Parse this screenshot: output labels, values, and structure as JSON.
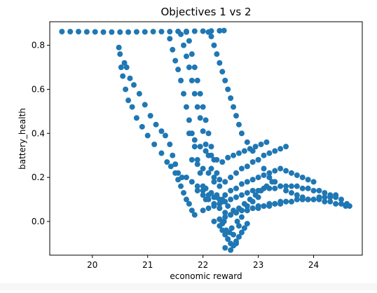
{
  "chart_data": {
    "type": "scatter",
    "title": "Objectives 1 vs 2",
    "xlabel": "economic reward",
    "ylabel": "battery_health",
    "xlim": [
      19.23,
      24.88
    ],
    "ylim": [
      -0.153,
      0.907
    ],
    "xticks": [
      20,
      21,
      22,
      23,
      24
    ],
    "yticks": [
      0.0,
      0.2,
      0.4,
      0.6,
      0.8
    ],
    "xtick_labels": [
      "20",
      "21",
      "22",
      "23",
      "24"
    ],
    "ytick_labels": [
      "0.0",
      "0.2",
      "0.4",
      "0.6",
      "0.8"
    ],
    "grid": false,
    "marker_color": "#1f77b4",
    "series": [
      {
        "x": [
          19.45,
          19.6,
          19.75,
          19.9,
          20.05,
          20.2,
          20.35,
          20.5,
          20.65,
          20.8,
          20.95,
          21.1,
          21.25,
          21.4,
          21.55,
          21.7,
          21.85,
          22.0,
          22.15,
          22.3,
          22.38,
          20.48,
          20.5,
          20.52,
          20.55,
          20.6,
          20.65,
          20.72,
          20.8,
          20.9,
          21.0,
          21.12,
          21.25,
          21.35,
          21.42,
          21.5,
          21.55,
          21.6,
          21.65,
          21.7,
          21.75,
          21.8,
          21.85,
          20.58,
          20.62,
          20.68,
          20.75,
          20.85,
          20.95,
          21.05,
          21.15,
          21.25,
          21.32,
          21.4,
          21.45,
          21.5,
          21.55,
          21.62,
          21.4,
          21.45,
          21.5,
          21.55,
          21.6,
          21.65,
          21.7,
          21.75,
          21.8,
          21.85,
          21.9,
          21.95,
          22.0,
          22.05,
          21.6,
          21.65,
          21.7,
          21.75,
          21.8,
          21.85,
          21.9,
          21.95,
          22.0,
          22.05,
          22.1,
          22.15,
          22.2,
          22.25,
          22.3,
          21.7,
          21.75,
          21.8,
          21.85,
          21.9,
          21.95,
          22.0,
          22.05,
          22.1,
          22.15,
          22.2,
          22.25,
          22.3,
          22.35,
          22.1,
          22.15,
          22.2,
          22.25,
          22.3,
          22.35,
          22.4,
          22.45,
          22.5,
          22.55,
          22.6,
          22.65,
          22.7,
          22.8,
          22.9,
          23.0,
          23.1,
          23.2,
          23.3,
          23.4,
          23.5,
          23.6,
          23.7,
          23.8,
          23.9,
          22.0,
          22.1,
          22.2,
          22.3,
          22.4,
          22.5,
          22.6,
          22.7,
          22.8,
          22.9,
          23.0,
          23.1,
          23.2,
          23.3,
          23.4,
          23.5,
          23.6,
          23.7,
          23.8,
          23.9,
          24.0,
          24.1,
          24.2,
          24.3,
          24.4,
          24.5,
          24.6,
          24.65,
          22.4,
          22.5,
          22.6,
          22.7,
          22.8,
          22.9,
          23.0,
          23.1,
          23.2,
          23.3,
          23.4,
          23.5,
          23.6,
          23.7,
          23.8,
          23.9,
          24.0,
          24.1,
          24.2,
          24.3,
          24.4,
          24.5,
          24.58,
          22.3,
          22.35,
          22.4,
          22.45,
          22.5,
          22.55,
          22.6,
          22.65,
          22.7,
          22.75,
          22.8,
          22.4,
          22.5,
          22.6,
          22.45,
          22.55,
          22.35,
          22.65,
          22.42,
          22.52,
          22.48,
          22.38,
          22.62,
          22.3,
          22.7,
          22.0,
          22.1,
          22.2,
          22.3,
          22.4,
          22.5,
          22.6,
          22.7,
          22.8,
          22.9,
          23.0,
          21.9,
          22.05,
          22.15,
          22.25,
          22.35,
          22.45,
          22.55,
          22.65,
          22.75,
          22.85,
          22.95,
          23.05,
          23.15,
          23.25,
          21.8,
          21.9,
          22.0,
          22.1,
          22.2,
          22.3,
          22.4,
          22.5,
          22.6,
          22.7,
          22.8,
          22.9,
          23.0,
          23.1,
          23.2,
          23.3,
          23.4,
          23.5,
          21.7,
          21.8,
          21.9,
          22.0,
          22.1,
          22.2,
          22.3,
          22.4,
          22.5,
          22.6,
          22.7,
          22.8,
          22.9,
          23.0,
          23.1,
          23.2,
          23.3,
          23.4,
          23.5,
          23.6,
          23.7,
          23.8,
          23.9,
          24.0,
          21.75,
          21.85,
          21.95,
          22.05,
          22.15,
          22.25,
          22.35,
          22.45,
          22.55,
          22.65,
          22.75,
          22.85,
          22.95,
          23.05,
          23.15,
          22.2,
          22.3,
          22.4,
          22.5,
          22.6,
          22.7,
          22.8,
          22.9,
          23.0,
          23.1,
          23.2,
          23.3,
          23.4,
          23.5,
          23.6,
          23.7,
          23.8,
          23.9,
          24.0,
          24.1,
          24.2,
          24.3,
          24.4
        ],
        "y": [
          0.862,
          0.862,
          0.862,
          0.861,
          0.861,
          0.86,
          0.86,
          0.86,
          0.86,
          0.861,
          0.861,
          0.862,
          0.862,
          0.862,
          0.863,
          0.863,
          0.864,
          0.864,
          0.865,
          0.866,
          0.867,
          0.79,
          0.76,
          0.7,
          0.66,
          0.6,
          0.55,
          0.52,
          0.47,
          0.43,
          0.39,
          0.35,
          0.31,
          0.27,
          0.25,
          0.22,
          0.19,
          0.16,
          0.13,
          0.1,
          0.08,
          0.05,
          0.03,
          0.72,
          0.7,
          0.65,
          0.62,
          0.58,
          0.53,
          0.48,
          0.44,
          0.41,
          0.39,
          0.35,
          0.3,
          0.26,
          0.22,
          0.2,
          0.83,
          0.78,
          0.73,
          0.69,
          0.64,
          0.58,
          0.52,
          0.46,
          0.4,
          0.34,
          0.28,
          0.22,
          0.16,
          0.1,
          0.85,
          0.8,
          0.75,
          0.7,
          0.64,
          0.58,
          0.52,
          0.47,
          0.41,
          0.35,
          0.3,
          0.24,
          0.18,
          0.12,
          0.06,
          0.86,
          0.82,
          0.76,
          0.7,
          0.64,
          0.58,
          0.52,
          0.46,
          0.4,
          0.34,
          0.28,
          0.22,
          0.16,
          0.1,
          0.86,
          0.84,
          0.8,
          0.76,
          0.72,
          0.68,
          0.64,
          0.6,
          0.56,
          0.52,
          0.48,
          0.44,
          0.4,
          0.36,
          0.32,
          0.28,
          0.24,
          0.2,
          0.18,
          0.16,
          0.14,
          0.13,
          0.12,
          0.11,
          0.1,
          0.05,
          0.06,
          0.07,
          0.08,
          0.09,
          0.1,
          0.11,
          0.12,
          0.13,
          0.14,
          0.14,
          0.15,
          0.15,
          0.15,
          0.16,
          0.16,
          0.16,
          0.16,
          0.15,
          0.15,
          0.14,
          0.14,
          0.13,
          0.12,
          0.11,
          0.1,
          0.08,
          0.07,
          0.02,
          0.03,
          0.04,
          0.05,
          0.05,
          0.06,
          0.07,
          0.07,
          0.08,
          0.08,
          0.09,
          0.09,
          0.09,
          0.1,
          0.1,
          0.1,
          0.1,
          0.1,
          0.09,
          0.09,
          0.08,
          0.08,
          0.07,
          -0.02,
          -0.04,
          -0.06,
          -0.08,
          -0.1,
          -0.11,
          -0.09,
          -0.07,
          -0.05,
          -0.03,
          -0.01,
          -0.12,
          -0.13,
          -0.1,
          -0.08,
          -0.06,
          -0.01,
          -0.02,
          -0.04,
          -0.03,
          -0.05,
          0.0,
          0.0,
          0.01,
          0.02,
          0.12,
          0.1,
          0.08,
          0.06,
          0.04,
          0.03,
          0.04,
          0.05,
          0.07,
          0.09,
          0.11,
          0.14,
          0.15,
          0.13,
          0.11,
          0.09,
          0.07,
          0.05,
          0.06,
          0.08,
          0.1,
          0.12,
          0.14,
          0.16,
          0.18,
          0.28,
          0.26,
          0.24,
          0.22,
          0.2,
          0.19,
          0.18,
          0.2,
          0.22,
          0.24,
          0.25,
          0.27,
          0.28,
          0.3,
          0.31,
          0.32,
          0.33,
          0.34,
          0.2,
          0.18,
          0.16,
          0.14,
          0.12,
          0.11,
          0.1,
          0.12,
          0.14,
          0.15,
          0.17,
          0.18,
          0.19,
          0.2,
          0.21,
          0.22,
          0.23,
          0.24,
          0.23,
          0.22,
          0.21,
          0.2,
          0.19,
          0.18,
          0.4,
          0.37,
          0.34,
          0.32,
          0.3,
          0.28,
          0.27,
          0.29,
          0.3,
          0.31,
          0.32,
          0.33,
          0.34,
          0.35,
          0.36,
          0.0,
          0.01,
          0.02,
          0.03,
          0.04,
          0.05,
          0.05,
          0.06,
          0.06,
          0.07,
          0.07,
          0.08,
          0.08,
          0.09,
          0.09,
          0.1,
          0.1,
          0.1,
          0.1,
          0.11,
          0.11,
          0.11,
          0.12
        ]
      }
    ]
  }
}
